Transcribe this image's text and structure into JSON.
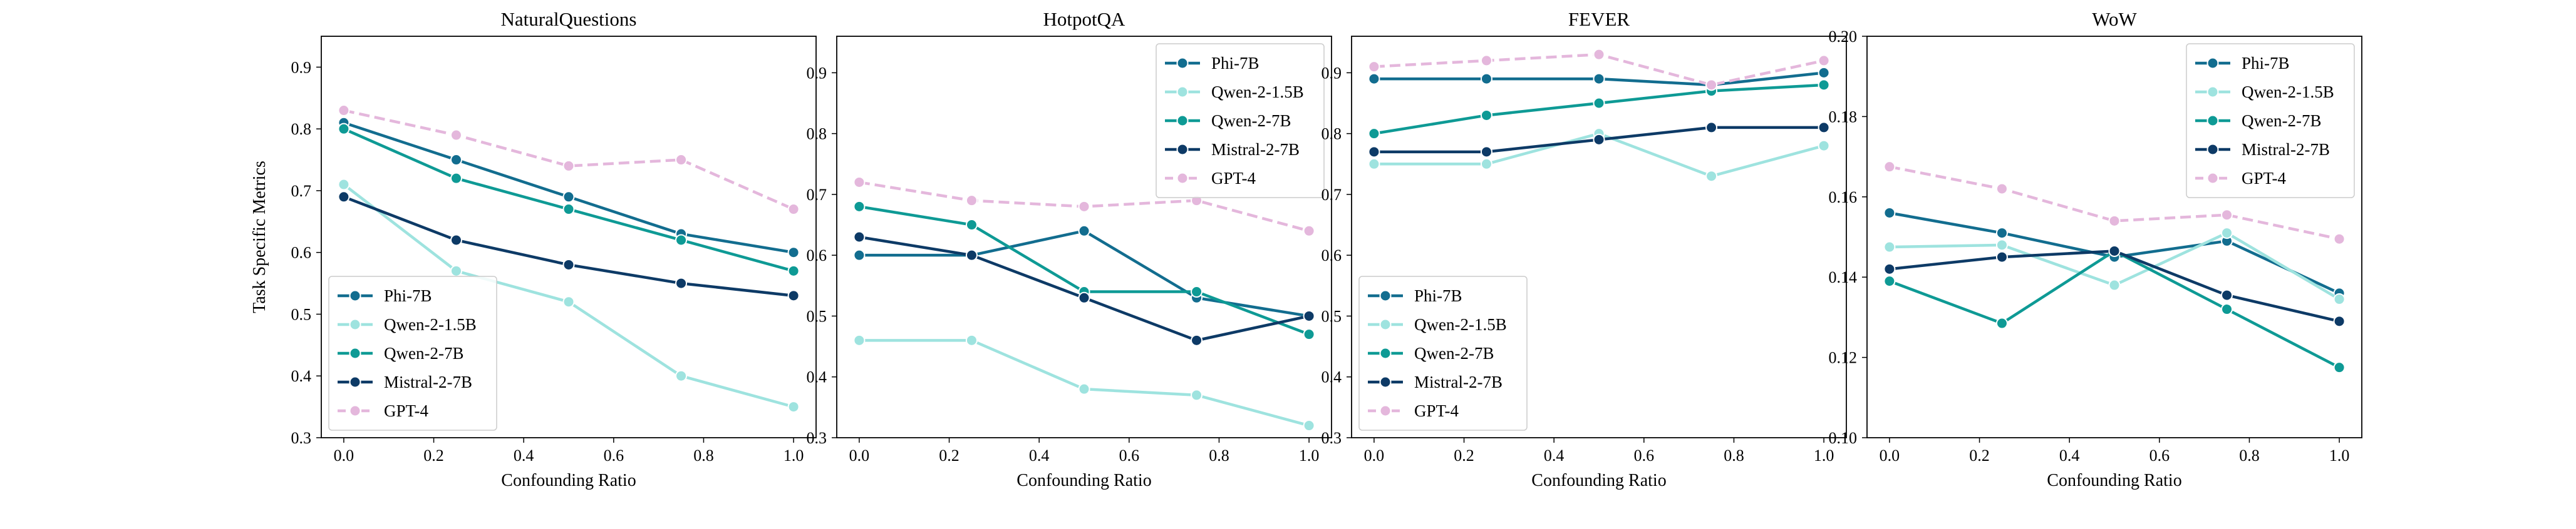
{
  "chart_data": [
    {
      "type": "line",
      "title": "NaturalQuestions",
      "xlabel": "Confounding Ratio",
      "ylabel": "Task Specific Metrics",
      "x": [
        0.0,
        0.25,
        0.5,
        0.75,
        1.0
      ],
      "xticks": [
        "0.0",
        "0.2",
        "0.4",
        "0.6",
        "0.8",
        "1.0"
      ],
      "xtick_values": [
        0.0,
        0.2,
        0.4,
        0.6,
        0.8,
        1.0
      ],
      "yticks": [
        "0.3",
        "0.4",
        "0.5",
        "0.6",
        "0.7",
        "0.8",
        "0.9"
      ],
      "ytick_values": [
        0.3,
        0.4,
        0.5,
        0.6,
        0.7,
        0.8,
        0.9
      ],
      "xlim": [
        -0.05,
        1.05
      ],
      "ylim": [
        0.3,
        0.95
      ],
      "legend_position": "lower-left",
      "series": [
        {
          "name": "Phi-7B",
          "color": "#126D8F",
          "dashed": false,
          "values": [
            0.81,
            0.75,
            0.69,
            0.63,
            0.6
          ]
        },
        {
          "name": "Qwen-2-1.5B",
          "color": "#9EE3DF",
          "dashed": false,
          "values": [
            0.71,
            0.57,
            0.52,
            0.4,
            0.35
          ]
        },
        {
          "name": "Qwen-2-7B",
          "color": "#0E9A95",
          "dashed": false,
          "values": [
            0.8,
            0.72,
            0.67,
            0.62,
            0.57
          ]
        },
        {
          "name": "Mistral-2-7B",
          "color": "#0D3A66",
          "dashed": false,
          "values": [
            0.69,
            0.62,
            0.58,
            0.55,
            0.53
          ]
        },
        {
          "name": "GPT-4",
          "color": "#E4B7DC",
          "dashed": true,
          "values": [
            0.83,
            0.79,
            0.74,
            0.75,
            0.67
          ]
        }
      ]
    },
    {
      "type": "line",
      "title": "HotpotQA",
      "xlabel": "Confounding Ratio",
      "ylabel": "",
      "x": [
        0.0,
        0.25,
        0.5,
        0.75,
        1.0
      ],
      "xticks": [
        "0.0",
        "0.2",
        "0.4",
        "0.6",
        "0.8",
        "1.0"
      ],
      "xtick_values": [
        0.0,
        0.2,
        0.4,
        0.6,
        0.8,
        1.0
      ],
      "yticks": [
        "0.3",
        "0.4",
        "0.5",
        "0.6",
        "0.7",
        "0.8",
        "0.9"
      ],
      "ytick_values": [
        0.3,
        0.4,
        0.5,
        0.6,
        0.7,
        0.8,
        0.9
      ],
      "xlim": [
        -0.05,
        1.05
      ],
      "ylim": [
        0.3,
        0.96
      ],
      "legend_position": "upper-right",
      "series": [
        {
          "name": "Phi-7B",
          "color": "#126D8F",
          "dashed": false,
          "values": [
            0.6,
            0.6,
            0.64,
            0.53,
            0.5
          ]
        },
        {
          "name": "Qwen-2-1.5B",
          "color": "#9EE3DF",
          "dashed": false,
          "values": [
            0.46,
            0.46,
            0.38,
            0.37,
            0.32
          ]
        },
        {
          "name": "Qwen-2-7B",
          "color": "#0E9A95",
          "dashed": false,
          "values": [
            0.68,
            0.65,
            0.54,
            0.54,
            0.47
          ]
        },
        {
          "name": "Mistral-2-7B",
          "color": "#0D3A66",
          "dashed": false,
          "values": [
            0.63,
            0.6,
            0.53,
            0.46,
            0.5
          ]
        },
        {
          "name": "GPT-4",
          "color": "#E4B7DC",
          "dashed": true,
          "values": [
            0.72,
            0.69,
            0.68,
            0.69,
            0.64
          ]
        }
      ]
    },
    {
      "type": "line",
      "title": "FEVER",
      "xlabel": "Confounding Ratio",
      "ylabel": "",
      "x": [
        0.0,
        0.25,
        0.5,
        0.75,
        1.0
      ],
      "xticks": [
        "0.0",
        "0.2",
        "0.4",
        "0.6",
        "0.8",
        "1.0"
      ],
      "xtick_values": [
        0.0,
        0.2,
        0.4,
        0.6,
        0.8,
        1.0
      ],
      "yticks": [
        "0.3",
        "0.4",
        "0.5",
        "0.6",
        "0.7",
        "0.8",
        "0.9"
      ],
      "ytick_values": [
        0.3,
        0.4,
        0.5,
        0.6,
        0.7,
        0.8,
        0.9
      ],
      "xlim": [
        -0.05,
        1.05
      ],
      "ylim": [
        0.3,
        0.96
      ],
      "legend_position": "lower-left",
      "series": [
        {
          "name": "Phi-7B",
          "color": "#126D8F",
          "dashed": false,
          "values": [
            0.89,
            0.89,
            0.89,
            0.88,
            0.9
          ]
        },
        {
          "name": "Qwen-2-1.5B",
          "color": "#9EE3DF",
          "dashed": false,
          "values": [
            0.75,
            0.75,
            0.8,
            0.73,
            0.78
          ]
        },
        {
          "name": "Qwen-2-7B",
          "color": "#0E9A95",
          "dashed": false,
          "values": [
            0.8,
            0.83,
            0.85,
            0.87,
            0.88
          ]
        },
        {
          "name": "Mistral-2-7B",
          "color": "#0D3A66",
          "dashed": false,
          "values": [
            0.77,
            0.77,
            0.79,
            0.81,
            0.81
          ]
        },
        {
          "name": "GPT-4",
          "color": "#E4B7DC",
          "dashed": true,
          "values": [
            0.91,
            0.92,
            0.93,
            0.88,
            0.92
          ]
        }
      ]
    },
    {
      "type": "line",
      "title": "WoW",
      "xlabel": "Confounding Ratio",
      "ylabel": "",
      "x": [
        0.0,
        0.25,
        0.5,
        0.75,
        1.0
      ],
      "xticks": [
        "0.0",
        "0.2",
        "0.4",
        "0.6",
        "0.8",
        "1.0"
      ],
      "xtick_values": [
        0.0,
        0.2,
        0.4,
        0.6,
        0.8,
        1.0
      ],
      "yticks": [
        "0.10",
        "0.12",
        "0.14",
        "0.16",
        "0.18",
        "0.20"
      ],
      "ytick_values": [
        0.1,
        0.12,
        0.14,
        0.16,
        0.18,
        0.2
      ],
      "xlim": [
        -0.05,
        1.05
      ],
      "ylim": [
        0.1,
        0.2
      ],
      "legend_position": "upper-right",
      "series": [
        {
          "name": "Phi-7B",
          "color": "#126D8F",
          "dashed": false,
          "values": [
            0.156,
            0.151,
            0.145,
            0.149,
            0.136
          ]
        },
        {
          "name": "Qwen-2-1.5B",
          "color": "#9EE3DF",
          "dashed": false,
          "values": [
            0.1475,
            0.148,
            0.138,
            0.151,
            0.1345
          ]
        },
        {
          "name": "Qwen-2-7B",
          "color": "#0E9A95",
          "dashed": false,
          "values": [
            0.139,
            0.1285,
            0.1465,
            0.132,
            0.1175
          ]
        },
        {
          "name": "Mistral-2-7B",
          "color": "#0D3A66",
          "dashed": false,
          "values": [
            0.142,
            0.145,
            0.1465,
            0.1355,
            0.129
          ]
        },
        {
          "name": "GPT-4",
          "color": "#E4B7DC",
          "dashed": true,
          "values": [
            0.1675,
            0.162,
            0.154,
            0.1555,
            0.1495
          ]
        }
      ]
    }
  ]
}
